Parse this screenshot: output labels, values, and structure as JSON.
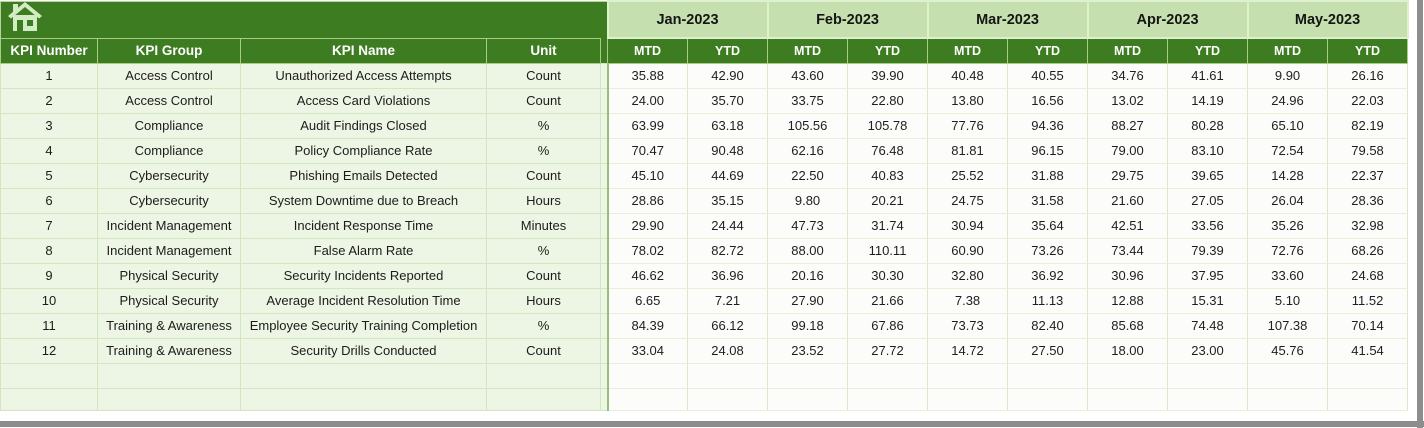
{
  "table": {
    "left_headers": [
      "KPI Number",
      "KPI Group",
      "KPI Name",
      "Unit"
    ],
    "months": [
      "Jan-2023",
      "Feb-2023",
      "Mar-2023",
      "Apr-2023",
      "May-2023"
    ],
    "sub_headers": [
      "MTD",
      "YTD"
    ],
    "rows": [
      {
        "number": "1",
        "group": "Access Control",
        "name": "Unauthorized Access Attempts",
        "unit": "Count",
        "values": [
          "35.88",
          "42.90",
          "43.60",
          "39.90",
          "40.48",
          "40.55",
          "34.76",
          "41.61",
          "9.90",
          "26.16"
        ]
      },
      {
        "number": "2",
        "group": "Access Control",
        "name": "Access Card Violations",
        "unit": "Count",
        "values": [
          "24.00",
          "35.70",
          "33.75",
          "22.80",
          "13.80",
          "16.56",
          "13.02",
          "14.19",
          "24.96",
          "22.03"
        ]
      },
      {
        "number": "3",
        "group": "Compliance",
        "name": "Audit Findings Closed",
        "unit": "%",
        "values": [
          "63.99",
          "63.18",
          "105.56",
          "105.78",
          "77.76",
          "94.36",
          "88.27",
          "80.28",
          "65.10",
          "82.19"
        ]
      },
      {
        "number": "4",
        "group": "Compliance",
        "name": "Policy Compliance Rate",
        "unit": "%",
        "values": [
          "70.47",
          "90.48",
          "62.16",
          "76.48",
          "81.81",
          "96.15",
          "79.00",
          "83.10",
          "72.54",
          "79.58"
        ]
      },
      {
        "number": "5",
        "group": "Cybersecurity",
        "name": "Phishing Emails Detected",
        "unit": "Count",
        "values": [
          "45.10",
          "44.69",
          "22.50",
          "40.83",
          "25.52",
          "31.88",
          "29.75",
          "39.65",
          "14.28",
          "22.37"
        ]
      },
      {
        "number": "6",
        "group": "Cybersecurity",
        "name": "System Downtime due to Breach",
        "unit": "Hours",
        "values": [
          "28.86",
          "35.15",
          "9.80",
          "20.21",
          "24.75",
          "31.58",
          "21.60",
          "27.05",
          "26.04",
          "28.36"
        ]
      },
      {
        "number": "7",
        "group": "Incident Management",
        "name": "Incident Response Time",
        "unit": "Minutes",
        "values": [
          "29.90",
          "24.44",
          "47.73",
          "31.74",
          "30.94",
          "35.64",
          "42.51",
          "33.56",
          "35.26",
          "32.98"
        ]
      },
      {
        "number": "8",
        "group": "Incident Management",
        "name": "False Alarm Rate",
        "unit": "%",
        "values": [
          "78.02",
          "82.72",
          "88.00",
          "110.11",
          "60.90",
          "73.26",
          "73.44",
          "79.39",
          "72.76",
          "68.26"
        ]
      },
      {
        "number": "9",
        "group": "Physical Security",
        "name": "Security Incidents Reported",
        "unit": "Count",
        "values": [
          "46.62",
          "36.96",
          "20.16",
          "30.30",
          "32.80",
          "36.92",
          "30.96",
          "37.95",
          "33.60",
          "24.68"
        ]
      },
      {
        "number": "10",
        "group": "Physical Security",
        "name": "Average Incident Resolution Time",
        "unit": "Hours",
        "values": [
          "6.65",
          "7.21",
          "27.90",
          "21.66",
          "7.38",
          "11.13",
          "12.88",
          "15.31",
          "5.10",
          "11.52"
        ]
      },
      {
        "number": "11",
        "group": "Training & Awareness",
        "name": "Employee Security Training Completion",
        "unit": "%",
        "values": [
          "84.39",
          "66.12",
          "99.18",
          "67.86",
          "73.73",
          "82.40",
          "85.68",
          "74.48",
          "107.38",
          "70.14"
        ]
      },
      {
        "number": "12",
        "group": "Training & Awareness",
        "name": "Security Drills Conducted",
        "unit": "Count",
        "values": [
          "33.04",
          "24.08",
          "23.52",
          "27.72",
          "14.72",
          "27.50",
          "18.00",
          "23.00",
          "45.76",
          "41.54"
        ]
      }
    ],
    "empty_row_count": 2
  },
  "colors": {
    "dark_green": "#3d7c21",
    "band_green": "#c5e0ae",
    "band_border": "#dff0cf",
    "pale_green": "#edf5e4",
    "cell_white": "#fcfdfa",
    "grid_left": "#d4e6c0",
    "grid_vert": "#d8e9c3",
    "grid_horiz": "#e7f1da",
    "grid_mid": "#b6d49b",
    "hdr_divider": "#a6cd86",
    "sep_green": "#94c177",
    "grey_bar": "#8d8d8d",
    "icon_pale": "#d4ecc3"
  }
}
